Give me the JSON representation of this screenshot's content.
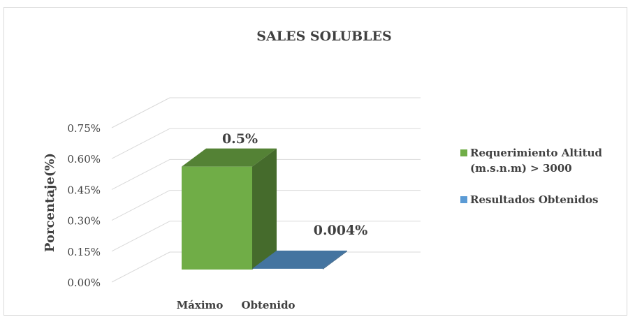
{
  "chart_data": {
    "type": "bar",
    "title": "SALES SOLUBLES",
    "ylabel": "Porcentaje(%)",
    "xlabel": "",
    "ylim": [
      0,
      0.75
    ],
    "yticks": [
      "0.00%",
      "0.15%",
      "0.30%",
      "0.45%",
      "0.60%",
      "0.75%"
    ],
    "categories": [
      "Máximo",
      "Obtenido"
    ],
    "series": [
      {
        "name": "Requerimiento Altitud (m.s.n.m) > 3000",
        "color": "#70ad47",
        "values": [
          0.5,
          0
        ],
        "label": "0.5%"
      },
      {
        "name": "Resultados Obtenidos",
        "color": "#5b9bd5",
        "values": [
          0,
          0.004
        ],
        "label": "0.004%"
      }
    ],
    "legend_position": "right",
    "grid": true,
    "style": "3d"
  }
}
